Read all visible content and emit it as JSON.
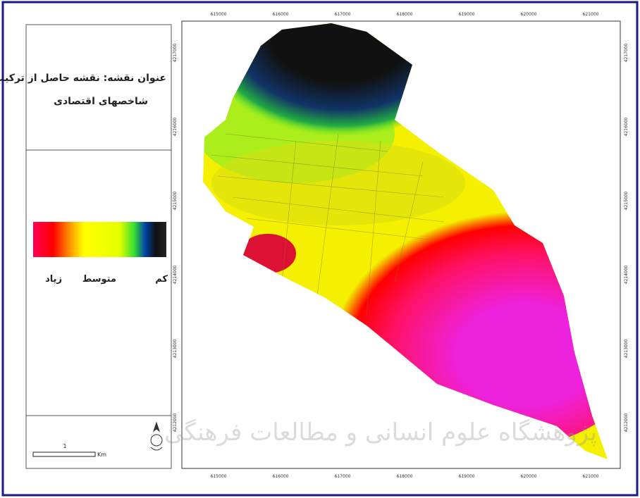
{
  "map": {
    "title_lines": [
      "عنوان نقشه: نقشه حاصل از ترکیب",
      "شاخصهای اقتصادی"
    ],
    "legend": {
      "low": "کم",
      "medium": "متوسط",
      "high": "زیاد"
    },
    "scale_bar": {
      "distance": "1",
      "unit": "Km"
    },
    "x_ticks": [
      "615000",
      "616000",
      "617000",
      "618000",
      "619000",
      "620000",
      "621000"
    ],
    "y_ticks": [
      "4217000",
      "4216000",
      "4215000",
      "4214000",
      "4213000",
      "4212000"
    ],
    "watermark": "پژوهشگاه علوم انسانی و مطالعات فرهنگی"
  }
}
